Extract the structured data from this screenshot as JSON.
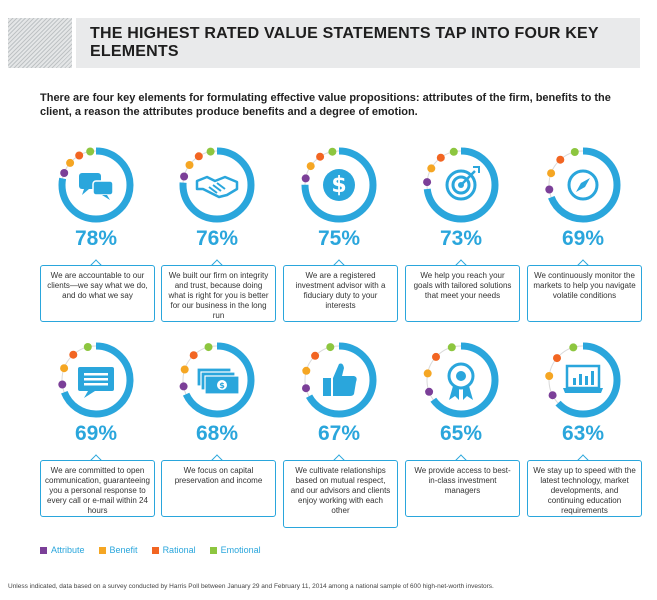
{
  "header": {
    "title": "THE HIGHEST RATED VALUE STATEMENTS TAP INTO FOUR KEY ELEMENTS"
  },
  "intro": "There are four key elements for formulating effective value propositions: attributes of the firm, benefits to the client, a reason the attributes produce benefits and a degree of emotion.",
  "colors": {
    "accent": "#2aa6dc",
    "attribute": "#7b3f98",
    "benefit": "#f5a623",
    "rational": "#f26522",
    "emotional": "#8dc63f",
    "ring_track": "#d9d9d9"
  },
  "cards": [
    {
      "percent": "78%",
      "value": 78,
      "icon": "chat-bubbles-icon",
      "text": "We are accountable to our clients—we say what we do, and do what we say"
    },
    {
      "percent": "76%",
      "value": 76,
      "icon": "handshake-icon",
      "text": "We built our firm on integrity and trust, because doing what is right for you is better for our business in the long run"
    },
    {
      "percent": "75%",
      "value": 75,
      "icon": "dollar-coin-icon",
      "text": "We are a registered investment advisor with a fiduciary duty to your interests"
    },
    {
      "percent": "73%",
      "value": 73,
      "icon": "target-icon",
      "text": "We help you reach your goals with tailored solutions that meet your needs"
    },
    {
      "percent": "69%",
      "value": 69,
      "icon": "compass-icon",
      "text": "We continuously monitor the markets to help you navigate volatile conditions"
    },
    {
      "percent": "69%",
      "value": 69,
      "icon": "speech-bubble-icon",
      "text": "We are committed to open communication, guaranteeing you a personal response to every call or e-mail within 24 hours"
    },
    {
      "percent": "68%",
      "value": 68,
      "icon": "cash-stack-icon",
      "text": "We focus on capital preservation and income"
    },
    {
      "percent": "67%",
      "value": 67,
      "icon": "thumbs-up-icon",
      "text": "We cultivate relationships based on mutual respect, and our advisors and clients enjoy working with each other"
    },
    {
      "percent": "65%",
      "value": 65,
      "icon": "award-ribbon-icon",
      "text": "We provide access to best-in-class investment managers"
    },
    {
      "percent": "63%",
      "value": 63,
      "icon": "laptop-chart-icon",
      "text": "We stay up to speed with the latest technology, market developments, and continuing education requirements"
    }
  ],
  "legend": [
    {
      "label": "Attribute",
      "color": "#7b3f98"
    },
    {
      "label": "Benefit",
      "color": "#f5a623"
    },
    {
      "label": "Rational",
      "color": "#f26522"
    },
    {
      "label": "Emotional",
      "color": "#8dc63f"
    }
  ],
  "footnote": "Unless indicated, data based on a survey conducted by Harris Poll between January 29 and February 11, 2014 among a national sample of 600 high-net-worth investors."
}
